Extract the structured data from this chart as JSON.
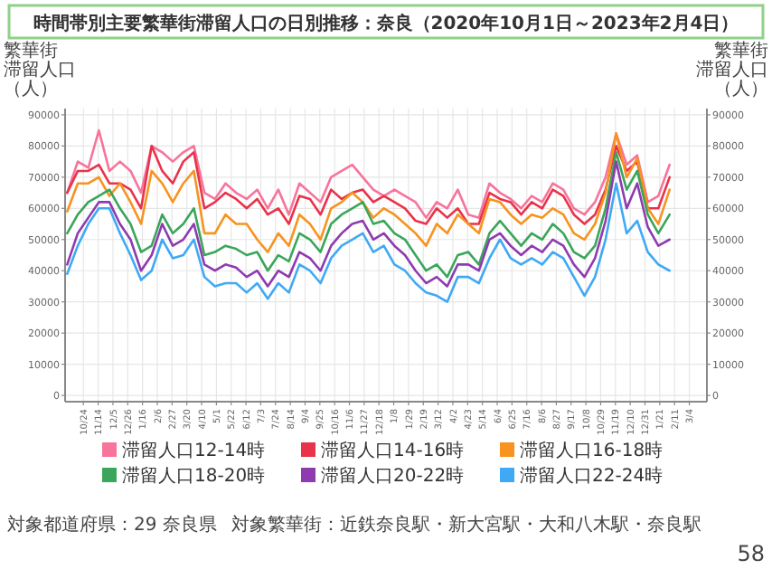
{
  "chart_data": {
    "type": "line",
    "title": "時間帯別主要繁華街滞留人口の日別推移：奈良（2020年10月1日～2023年2月4日）",
    "ylabel": "繁華街滞留人口（人）",
    "y2label": "繁華街滞留人口（人）",
    "annotations": [
      "対象都道府県：29 奈良県",
      "対象繁華街：近鉄奈良駅・新大宮駅・大和八木駅・奈良駅",
      "58"
    ],
    "x": [
      "2020-10-01",
      "2020-10-16",
      "2020-10-31",
      "2020-11-15",
      "2020-11-30",
      "2020-12-15",
      "2020-12-30",
      "2021-01-14",
      "2021-01-29",
      "2021-02-13",
      "2021-02-28",
      "2021-03-15",
      "2021-03-30",
      "2021-04-14",
      "2021-04-29",
      "2021-05-14",
      "2021-05-29",
      "2021-06-13",
      "2021-06-28",
      "2021-07-13",
      "2021-07-28",
      "2021-08-12",
      "2021-08-27",
      "2021-09-11",
      "2021-09-26",
      "2021-10-11",
      "2021-10-26",
      "2021-11-10",
      "2021-11-25",
      "2021-12-10",
      "2021-12-25",
      "2022-01-09",
      "2022-01-24",
      "2022-02-08",
      "2022-02-23",
      "2022-03-10",
      "2022-03-25",
      "2022-04-09",
      "2022-04-24",
      "2022-05-09",
      "2022-05-24",
      "2022-06-08",
      "2022-06-23",
      "2022-07-08",
      "2022-07-23",
      "2022-08-07",
      "2022-08-22",
      "2022-09-06",
      "2022-09-21",
      "2022-10-06",
      "2022-10-21",
      "2022-11-05",
      "2022-11-20",
      "2022-12-05",
      "2022-12-20",
      "2023-01-04",
      "2023-01-19",
      "2023-02-04"
    ],
    "series": [
      {
        "name": "滞留人口12-14時",
        "color": "#f7749b",
        "values": [
          65000,
          75000,
          73000,
          85000,
          72000,
          75000,
          72000,
          65000,
          80000,
          78000,
          75000,
          78000,
          80000,
          65000,
          63000,
          68000,
          65000,
          63000,
          66000,
          60000,
          66000,
          58000,
          68000,
          65000,
          62000,
          70000,
          72000,
          74000,
          70000,
          66000,
          64000,
          66000,
          64000,
          62000,
          57000,
          62000,
          60000,
          66000,
          58000,
          57000,
          68000,
          65000,
          63000,
          60000,
          64000,
          62000,
          68000,
          66000,
          60000,
          58000,
          62000,
          70000,
          84000,
          74000,
          77000,
          62000,
          64000,
          74000
        ]
      },
      {
        "name": "滞留人口14-16時",
        "color": "#e8334a",
        "values": [
          65000,
          72000,
          72000,
          74000,
          68000,
          68000,
          66000,
          60000,
          80000,
          72000,
          68000,
          75000,
          78000,
          60000,
          62000,
          65000,
          63000,
          60000,
          63000,
          58000,
          60000,
          55000,
          64000,
          63000,
          58000,
          66000,
          63000,
          65000,
          66000,
          62000,
          64000,
          62000,
          60000,
          56000,
          55000,
          60000,
          57000,
          60000,
          55000,
          55000,
          65000,
          63000,
          62000,
          58000,
          62000,
          60000,
          66000,
          64000,
          58000,
          55000,
          58000,
          66000,
          80000,
          72000,
          75000,
          60000,
          60000,
          70000
        ]
      },
      {
        "name": "滞留人口16-18時",
        "color": "#f7931e",
        "values": [
          59000,
          68000,
          68000,
          70000,
          64000,
          68000,
          62000,
          55000,
          72000,
          68000,
          62000,
          68000,
          72000,
          52000,
          52000,
          58000,
          55000,
          55000,
          50000,
          46000,
          52000,
          48000,
          58000,
          55000,
          50000,
          60000,
          62000,
          65000,
          62000,
          57000,
          60000,
          58000,
          55000,
          52000,
          48000,
          55000,
          52000,
          58000,
          55000,
          52000,
          63000,
          62000,
          58000,
          55000,
          58000,
          57000,
          60000,
          58000,
          52000,
          50000,
          55000,
          65000,
          84000,
          70000,
          76000,
          60000,
          55000,
          66000
        ]
      },
      {
        "name": "滞留人口18-20時",
        "color": "#3aa65a",
        "values": [
          52000,
          58000,
          62000,
          64000,
          66000,
          60000,
          55000,
          46000,
          48000,
          58000,
          52000,
          55000,
          60000,
          45000,
          46000,
          48000,
          47000,
          45000,
          46000,
          40000,
          45000,
          43000,
          52000,
          50000,
          46000,
          55000,
          58000,
          60000,
          62000,
          55000,
          56000,
          52000,
          50000,
          45000,
          40000,
          42000,
          38000,
          45000,
          46000,
          42000,
          52000,
          56000,
          52000,
          48000,
          52000,
          50000,
          55000,
          52000,
          46000,
          44000,
          48000,
          60000,
          78000,
          66000,
          72000,
          58000,
          52000,
          58000
        ]
      },
      {
        "name": "滞留人口20-22時",
        "color": "#8e3bb0",
        "values": [
          42000,
          52000,
          57000,
          62000,
          62000,
          55000,
          50000,
          40000,
          45000,
          55000,
          48000,
          50000,
          55000,
          42000,
          40000,
          42000,
          41000,
          38000,
          40000,
          35000,
          40000,
          38000,
          46000,
          44000,
          40000,
          48000,
          52000,
          55000,
          56000,
          50000,
          52000,
          48000,
          45000,
          40000,
          36000,
          38000,
          35000,
          42000,
          42000,
          40000,
          50000,
          52000,
          48000,
          45000,
          48000,
          46000,
          50000,
          48000,
          42000,
          38000,
          44000,
          56000,
          75000,
          60000,
          68000,
          54000,
          48000,
          50000
        ]
      },
      {
        "name": "滞留人口22-24時",
        "color": "#3fa9f5",
        "values": [
          39000,
          48000,
          55000,
          60000,
          60000,
          52000,
          45000,
          37000,
          40000,
          50000,
          44000,
          45000,
          50000,
          38000,
          35000,
          36000,
          36000,
          33000,
          36000,
          31000,
          36000,
          33000,
          42000,
          40000,
          36000,
          44000,
          48000,
          50000,
          52000,
          46000,
          48000,
          42000,
          40000,
          36000,
          33000,
          32000,
          30000,
          38000,
          38000,
          36000,
          44000,
          50000,
          44000,
          42000,
          44000,
          42000,
          46000,
          44000,
          38000,
          32000,
          38000,
          50000,
          68000,
          52000,
          56000,
          46000,
          42000,
          40000
        ]
      }
    ],
    "xlim": [
      "2020-09-28",
      "2023-03-29"
    ],
    "xticks": [
      {
        "value": "2020-10-24",
        "label": "10/24"
      },
      {
        "value": "2020-11-14",
        "label": "11/14"
      },
      {
        "value": "2020-12-05",
        "label": "12/5"
      },
      {
        "value": "2020-12-26",
        "label": "12/26"
      },
      {
        "value": "2021-01-16",
        "label": "1/16"
      },
      {
        "value": "2021-02-06",
        "label": "2/6"
      },
      {
        "value": "2021-02-27",
        "label": "2/27"
      },
      {
        "value": "2021-03-20",
        "label": "3/20"
      },
      {
        "value": "2021-04-10",
        "label": "4/10"
      },
      {
        "value": "2021-05-01",
        "label": "5/1"
      },
      {
        "value": "2021-05-22",
        "label": "5/22"
      },
      {
        "value": "2021-06-12",
        "label": "6/12"
      },
      {
        "value": "2021-07-03",
        "label": "7/3"
      },
      {
        "value": "2021-07-24",
        "label": "7/24"
      },
      {
        "value": "2021-08-14",
        "label": "8/14"
      },
      {
        "value": "2021-09-04",
        "label": "9/4"
      },
      {
        "value": "2021-09-25",
        "label": "9/25"
      },
      {
        "value": "2021-10-16",
        "label": "10/16"
      },
      {
        "value": "2021-11-06",
        "label": "11/6"
      },
      {
        "value": "2021-11-27",
        "label": "11/27"
      },
      {
        "value": "2021-12-18",
        "label": "12/18"
      },
      {
        "value": "2022-01-08",
        "label": "1/8"
      },
      {
        "value": "2022-01-29",
        "label": "1/29"
      },
      {
        "value": "2022-02-19",
        "label": "2/19"
      },
      {
        "value": "2022-03-12",
        "label": "3/12"
      },
      {
        "value": "2022-04-02",
        "label": "4/2"
      },
      {
        "value": "2022-04-23",
        "label": "4/23"
      },
      {
        "value": "2022-05-14",
        "label": "5/14"
      },
      {
        "value": "2022-06-04",
        "label": "6/4"
      },
      {
        "value": "2022-06-25",
        "label": "6/25"
      },
      {
        "value": "2022-07-16",
        "label": "7/16"
      },
      {
        "value": "2022-08-06",
        "label": "8/6"
      },
      {
        "value": "2022-08-27",
        "label": "8/27"
      },
      {
        "value": "2022-09-17",
        "label": "9/17"
      },
      {
        "value": "2022-10-08",
        "label": "10/8"
      },
      {
        "value": "2022-10-29",
        "label": "10/29"
      },
      {
        "value": "2022-11-19",
        "label": "11/19"
      },
      {
        "value": "2022-12-10",
        "label": "12/10"
      },
      {
        "value": "2022-12-31",
        "label": "12/31"
      },
      {
        "value": "2023-01-21",
        "label": "1/21"
      },
      {
        "value": "2023-02-11",
        "label": "2/11"
      },
      {
        "value": "2023-03-04",
        "label": "3/4"
      }
    ],
    "ylim": [
      -2000,
      92000
    ],
    "yticks": [
      0,
      10000,
      20000,
      30000,
      40000,
      50000,
      60000,
      70000,
      80000,
      90000
    ],
    "y2lim": [
      -2000,
      92000
    ],
    "y2ticks": [
      0,
      10000,
      20000,
      30000,
      40000,
      50000,
      60000,
      70000,
      80000,
      90000
    ],
    "grid": true,
    "legend": "bottom"
  }
}
